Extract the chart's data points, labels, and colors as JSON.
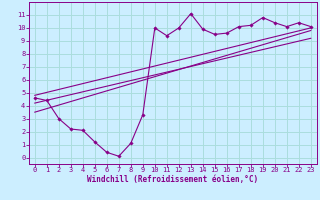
{
  "xlabel": "Windchill (Refroidissement éolien,°C)",
  "bg_color": "#cceeff",
  "line_color": "#880088",
  "grid_color": "#aadddd",
  "xlim": [
    -0.5,
    23.5
  ],
  "ylim": [
    -0.5,
    12
  ],
  "xticks": [
    0,
    1,
    2,
    3,
    4,
    5,
    6,
    7,
    8,
    9,
    10,
    11,
    12,
    13,
    14,
    15,
    16,
    17,
    18,
    19,
    20,
    21,
    22,
    23
  ],
  "yticks": [
    0,
    1,
    2,
    3,
    4,
    5,
    6,
    7,
    8,
    9,
    10,
    11
  ],
  "data_x": [
    0,
    1,
    2,
    3,
    4,
    5,
    6,
    7,
    8,
    9,
    10,
    11,
    12,
    13,
    14,
    15,
    16,
    17,
    18,
    19,
    20,
    21,
    22,
    23
  ],
  "data_y": [
    4.6,
    4.4,
    3.0,
    2.2,
    2.1,
    1.2,
    0.4,
    0.1,
    1.1,
    3.3,
    10.0,
    9.4,
    10.0,
    11.1,
    9.9,
    9.5,
    9.6,
    10.1,
    10.2,
    10.8,
    10.4,
    10.1,
    10.4,
    10.1
  ],
  "line1_x": [
    0,
    23
  ],
  "line1_y": [
    3.5,
    9.8
  ],
  "line2_x": [
    0,
    23
  ],
  "line2_y": [
    4.2,
    9.2
  ],
  "line3_x": [
    0,
    23
  ],
  "line3_y": [
    4.8,
    10.0
  ]
}
